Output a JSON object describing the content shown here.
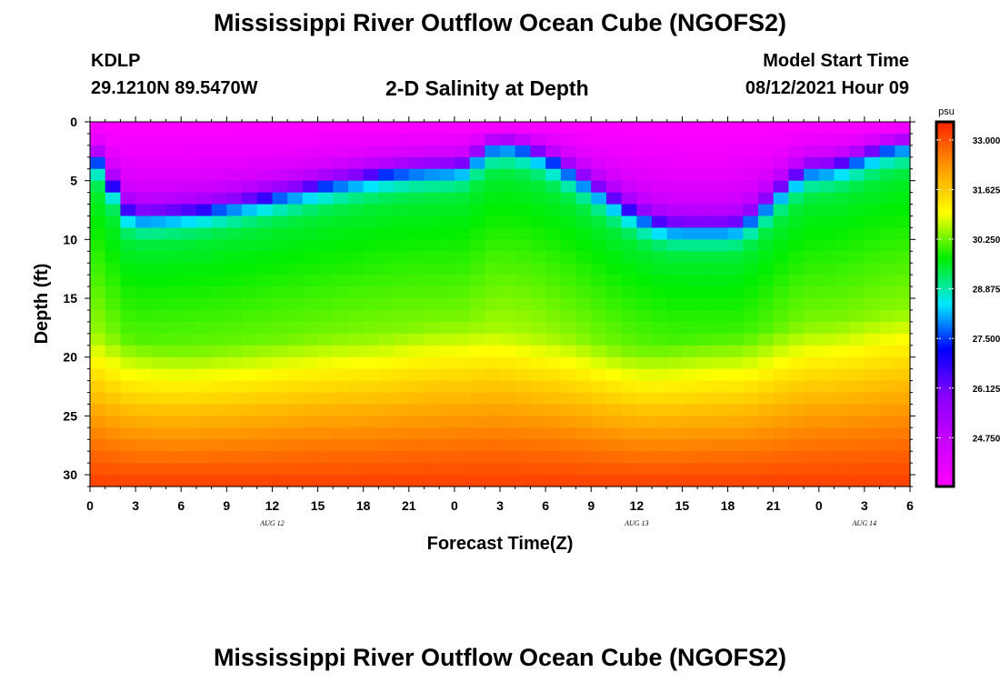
{
  "header": {
    "title": "Mississippi River Outflow Ocean Cube (NGOFS2)",
    "station_id": "KDLP",
    "station_coords": "29.1210N  89.5470W",
    "subtitle": "2-D Salinity at Depth",
    "model_start_label": "Model Start Time",
    "model_start_value": "08/12/2021 Hour 09"
  },
  "footer": {
    "title": "Mississippi River Outflow Ocean Cube (NGOFS2)"
  },
  "chart_data": {
    "type": "heatmap",
    "title": "2-D Salinity at Depth",
    "xlabel": "Forecast Time(Z)",
    "ylabel": "Depth (ft)",
    "x_tick_labels": [
      "0",
      "3",
      "6",
      "9",
      "12",
      "15",
      "18",
      "21",
      "0",
      "3",
      "6",
      "9",
      "12",
      "15",
      "18",
      "21",
      "0",
      "3",
      "6"
    ],
    "x_range_hours": [
      0,
      54
    ],
    "date_labels": [
      {
        "text": "AUG  12",
        "hour": 12
      },
      {
        "text": "AUG  13",
        "hour": 36
      },
      {
        "text": "AUG  14",
        "hour": 51
      }
    ],
    "y_tick_labels": [
      "0",
      "5",
      "10",
      "15",
      "20",
      "25",
      "30"
    ],
    "y_tick_values": [
      0,
      5,
      10,
      15,
      20,
      25,
      30
    ],
    "y_range_ft": [
      0,
      31
    ],
    "colorbar": {
      "unit": "psu",
      "tick_labels": [
        "33.000",
        "31.625",
        "30.250",
        "28.875",
        "27.500",
        "26.125",
        "24.750"
      ],
      "tick_values": [
        33.0,
        31.625,
        30.25,
        28.875,
        27.5,
        26.125,
        24.75
      ],
      "range": [
        23.4,
        33.5
      ],
      "colors": [
        "#ff00ff",
        "#c800ff",
        "#8800ff",
        "#0000ff",
        "#00e8ff",
        "#00ee00",
        "#ffff00",
        "#ff9900",
        "#ff2200"
      ]
    },
    "salinity_description": {
      "pycnocline_depth_ft": {
        "hour_0": 3,
        "hour_3": 8,
        "hour_24": 4,
        "hour_27": 2,
        "hour_39": 9,
        "hour_42": 9,
        "hour_48": 4,
        "hour_54": 2
      },
      "surface_psu": 23.5,
      "bottom_psu": 33.2
    }
  }
}
